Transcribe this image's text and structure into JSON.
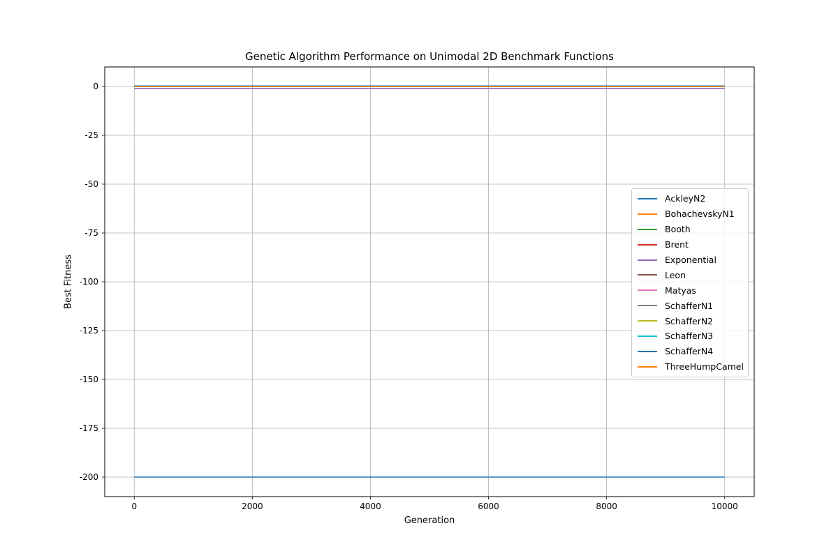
{
  "chart_data": {
    "type": "line",
    "title": "Genetic Algorithm Performance on Unimodal 2D Benchmark Functions",
    "xlabel": "Generation",
    "ylabel": "Best Fitness",
    "xlim": [
      -500,
      10500
    ],
    "ylim": [
      -210,
      10
    ],
    "xticks": [
      0,
      2000,
      4000,
      6000,
      8000,
      10000
    ],
    "yticks": [
      0,
      -25,
      -50,
      -75,
      -100,
      -125,
      -150,
      -175,
      -200
    ],
    "grid": true,
    "legend_position": "center-right",
    "x": [
      0,
      10000
    ],
    "series": [
      {
        "name": "AckleyN2",
        "color": "#1f77b4",
        "values": [
          -200,
          -200
        ]
      },
      {
        "name": "BohachevskyN1",
        "color": "#ff7f0e",
        "values": [
          0,
          0
        ]
      },
      {
        "name": "Booth",
        "color": "#2ca02c",
        "values": [
          0,
          0
        ]
      },
      {
        "name": "Brent",
        "color": "#d62728",
        "values": [
          0,
          0
        ]
      },
      {
        "name": "Exponential",
        "color": "#9467bd",
        "values": [
          -1,
          -1
        ]
      },
      {
        "name": "Leon",
        "color": "#8c564b",
        "values": [
          0,
          0
        ]
      },
      {
        "name": "Matyas",
        "color": "#e377c2",
        "values": [
          0,
          0
        ]
      },
      {
        "name": "SchafferN1",
        "color": "#7f7f7f",
        "values": [
          0,
          0
        ]
      },
      {
        "name": "SchafferN2",
        "color": "#bcbd22",
        "values": [
          0,
          0
        ]
      },
      {
        "name": "SchafferN3",
        "color": "#17becf",
        "values": [
          0,
          0
        ]
      },
      {
        "name": "SchafferN4",
        "color": "#1f77b4",
        "values": [
          0.29,
          0.29
        ]
      },
      {
        "name": "ThreeHumpCamel",
        "color": "#ff7f0e",
        "values": [
          0,
          0
        ]
      }
    ]
  }
}
